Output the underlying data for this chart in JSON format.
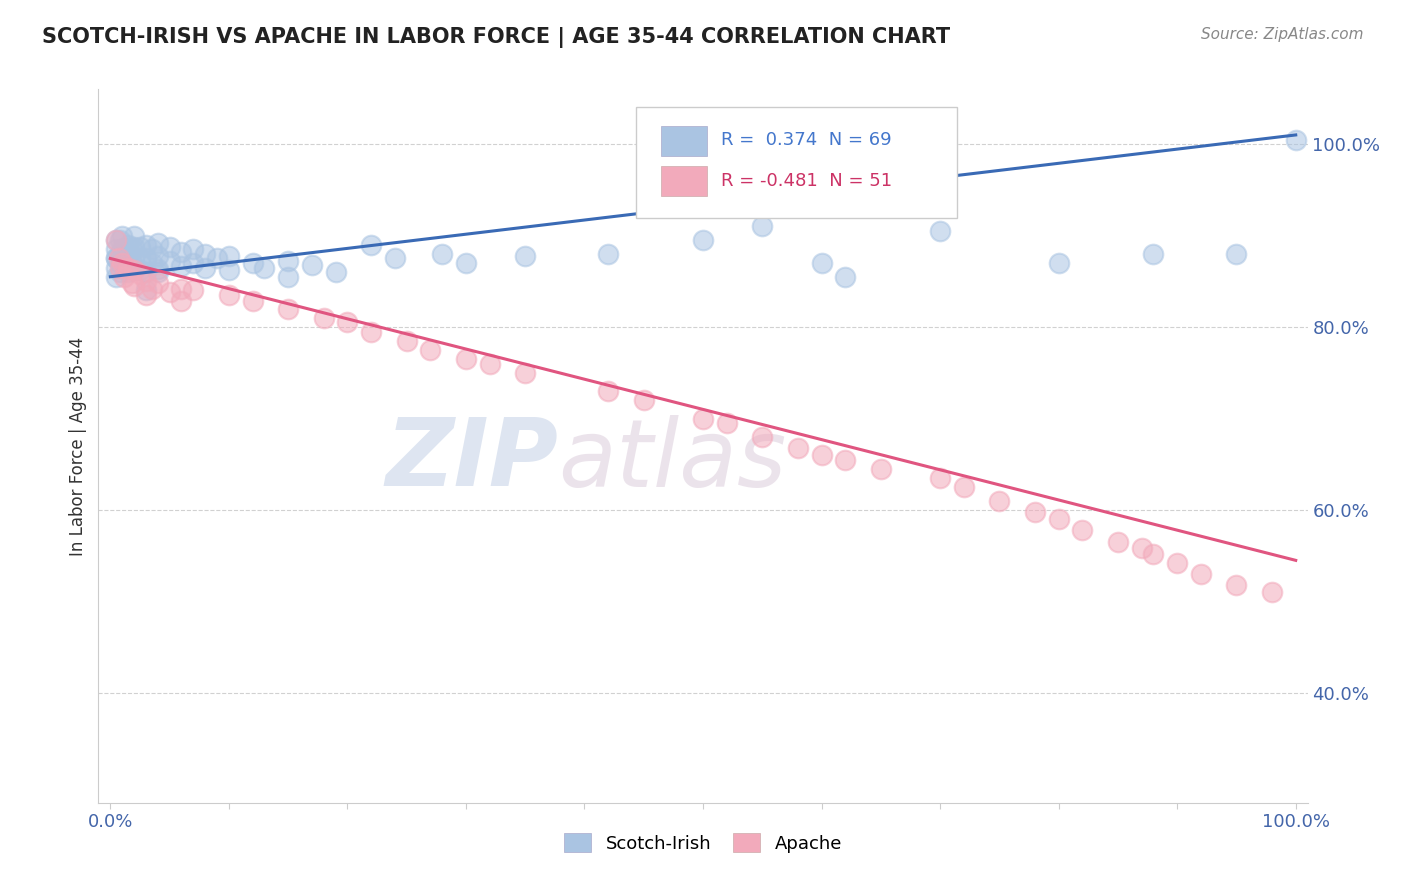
{
  "title": "SCOTCH-IRISH VS APACHE IN LABOR FORCE | AGE 35-44 CORRELATION CHART",
  "source_text": "Source: ZipAtlas.com",
  "ylabel": "In Labor Force | Age 35-44",
  "xlim": [
    -0.01,
    1.01
  ],
  "ylim": [
    0.28,
    1.06
  ],
  "x_ticks": [
    0.0,
    0.1,
    0.2,
    0.3,
    0.4,
    0.5,
    0.6,
    0.7,
    0.8,
    0.9,
    1.0
  ],
  "x_tick_labels": [
    "0.0%",
    "",
    "",
    "",
    "",
    "",
    "",
    "",
    "",
    "",
    "100.0%"
  ],
  "y_tick_labels": [
    "40.0%",
    "60.0%",
    "80.0%",
    "100.0%"
  ],
  "y_ticks": [
    0.4,
    0.6,
    0.8,
    1.0
  ],
  "blue_R": 0.374,
  "blue_N": 69,
  "pink_R": -0.481,
  "pink_N": 51,
  "blue_color": "#aac4e2",
  "pink_color": "#f2aabb",
  "blue_line_color": "#3a6ab5",
  "pink_line_color": "#e05580",
  "legend_blue_label": "Scotch-Irish",
  "legend_pink_label": "Apache",
  "watermark_zip": "ZIP",
  "watermark_atlas": "atlas",
  "blue_trend_x0": 0.0,
  "blue_trend_y0": 0.855,
  "blue_trend_x1": 1.0,
  "blue_trend_y1": 1.01,
  "pink_trend_x0": 0.0,
  "pink_trend_y0": 0.875,
  "pink_trend_x1": 1.0,
  "pink_trend_y1": 0.545
}
